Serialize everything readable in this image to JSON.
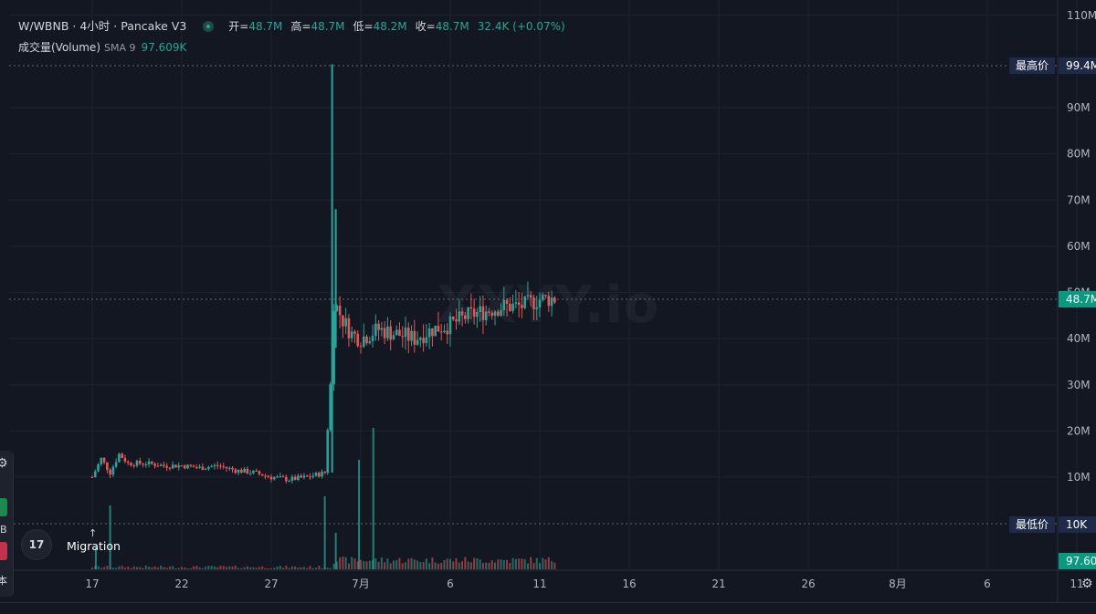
{
  "header": {
    "symbol": "W/WBNB · 4小时 · Pancake V3",
    "open_label": "开=",
    "open_value": "48.7M",
    "high_label": "高=",
    "high_value": "48.7M",
    "low_label": "低=",
    "low_value": "48.2M",
    "close_label": "收=",
    "close_value": "48.7M",
    "change_value": "32.4K (+0.07%)"
  },
  "volume_legend": {
    "label": "成交量(Volume)",
    "sma": "SMA 9",
    "value": "97.609K"
  },
  "watermark": "XXYY.io",
  "annotation": {
    "arrow": "↑",
    "label": "Migration"
  },
  "tv_logo": "17",
  "left_toolbar": {
    "text1": "B",
    "text2": "本"
  },
  "markers": {
    "high_label": "最高价",
    "high_value": "99.4M",
    "low_label": "最低价",
    "low_value": "10K",
    "last_value": "48.7M",
    "volume_value": "97.60"
  },
  "colors": {
    "up": "#26a69a",
    "down": "#ef5350",
    "background": "#131722",
    "grid": "#1f2330"
  },
  "chart_data": {
    "type": "candlestick",
    "y_axis_ticks": [
      "10M",
      "20M",
      "30M",
      "40M",
      "50M",
      "60M",
      "70M",
      "80M",
      "90M",
      "110M"
    ],
    "ylim": [
      0,
      110
    ],
    "y_unit": "M",
    "x_axis_ticks": [
      "17",
      "22",
      "27",
      "7月",
      "6",
      "11",
      "16",
      "21",
      "26",
      "8月",
      "6",
      "11"
    ],
    "highest_price": "99.4M",
    "lowest_price": "10K",
    "last_price": "48.7M",
    "series": [
      {
        "name": "price",
        "x_day_index": [
          0,
          0.5,
          1,
          1.5,
          2,
          3,
          4,
          5,
          6,
          7,
          8,
          9,
          10,
          11,
          12,
          13,
          13.3,
          13.5,
          14,
          14.5,
          15,
          16,
          17,
          18,
          19,
          20,
          21,
          22,
          23,
          24,
          25,
          26
        ],
        "close": [
          10,
          14,
          11,
          15,
          13,
          13,
          12.5,
          12.5,
          12,
          12.5,
          11.5,
          11,
          10,
          9.5,
          10,
          11,
          30,
          48,
          44,
          41,
          40,
          42,
          41,
          40,
          42,
          43,
          45,
          46,
          47,
          47,
          48.5,
          48.7
        ]
      }
    ],
    "volume": {
      "name": "成交量(Volume)",
      "sma_label": "SMA 9",
      "sma_value": "97.609K"
    }
  }
}
